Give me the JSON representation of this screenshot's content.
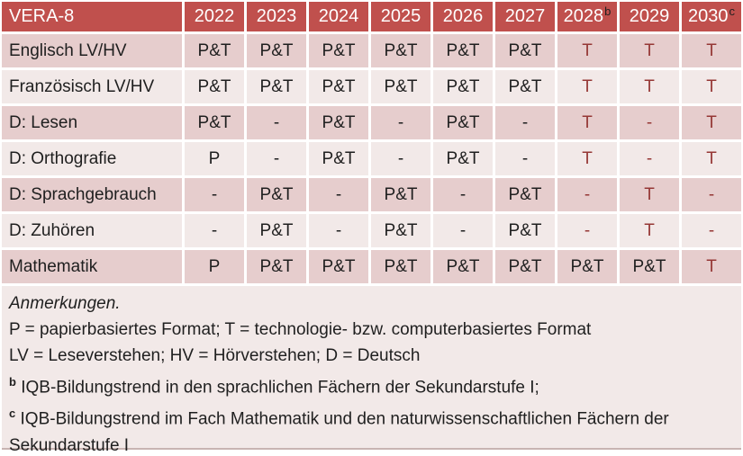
{
  "table": {
    "title": "VERA-8",
    "columns": [
      {
        "year": "2022",
        "sup": ""
      },
      {
        "year": "2023",
        "sup": ""
      },
      {
        "year": "2024",
        "sup": ""
      },
      {
        "year": "2025",
        "sup": ""
      },
      {
        "year": "2026",
        "sup": ""
      },
      {
        "year": "2027",
        "sup": ""
      },
      {
        "year": "2028",
        "sup": "b"
      },
      {
        "year": "2029",
        "sup": ""
      },
      {
        "year": "2030",
        "sup": "c"
      }
    ],
    "rows": [
      {
        "label": "Englisch LV/HV",
        "cells": [
          {
            "t": "P&T",
            "red": false
          },
          {
            "t": "P&T",
            "red": false
          },
          {
            "t": "P&T",
            "red": false
          },
          {
            "t": "P&T",
            "red": false
          },
          {
            "t": "P&T",
            "red": false
          },
          {
            "t": "P&T",
            "red": false
          },
          {
            "t": "T",
            "red": true
          },
          {
            "t": "T",
            "red": true
          },
          {
            "t": "T",
            "red": true
          }
        ]
      },
      {
        "label": "Französisch LV/HV",
        "cells": [
          {
            "t": "P&T",
            "red": false
          },
          {
            "t": "P&T",
            "red": false
          },
          {
            "t": "P&T",
            "red": false
          },
          {
            "t": "P&T",
            "red": false
          },
          {
            "t": "P&T",
            "red": false
          },
          {
            "t": "P&T",
            "red": false
          },
          {
            "t": "T",
            "red": true
          },
          {
            "t": "T",
            "red": true
          },
          {
            "t": "T",
            "red": true
          }
        ]
      },
      {
        "label": "D: Lesen",
        "cells": [
          {
            "t": "P&T",
            "red": false
          },
          {
            "t": "-",
            "red": false
          },
          {
            "t": "P&T",
            "red": false
          },
          {
            "t": "-",
            "red": false
          },
          {
            "t": "P&T",
            "red": false
          },
          {
            "t": "-",
            "red": false
          },
          {
            "t": "T",
            "red": true
          },
          {
            "t": "-",
            "red": true
          },
          {
            "t": "T",
            "red": true
          }
        ]
      },
      {
        "label": "D: Orthografie",
        "cells": [
          {
            "t": "P",
            "red": false
          },
          {
            "t": "-",
            "red": false
          },
          {
            "t": "P&T",
            "red": false
          },
          {
            "t": "-",
            "red": false
          },
          {
            "t": "P&T",
            "red": false
          },
          {
            "t": "-",
            "red": false
          },
          {
            "t": "T",
            "red": true
          },
          {
            "t": "-",
            "red": true
          },
          {
            "t": "T",
            "red": true
          }
        ]
      },
      {
        "label": "D: Sprachgebrauch",
        "cells": [
          {
            "t": "-",
            "red": false
          },
          {
            "t": "P&T",
            "red": false
          },
          {
            "t": "-",
            "red": false
          },
          {
            "t": "P&T",
            "red": false
          },
          {
            "t": "-",
            "red": false
          },
          {
            "t": "P&T",
            "red": false
          },
          {
            "t": "-",
            "red": true
          },
          {
            "t": "T",
            "red": true
          },
          {
            "t": "-",
            "red": true
          }
        ]
      },
      {
        "label": "D: Zuhören",
        "cells": [
          {
            "t": "-",
            "red": false
          },
          {
            "t": "P&T",
            "red": false
          },
          {
            "t": "-",
            "red": false
          },
          {
            "t": "P&T",
            "red": false
          },
          {
            "t": "-",
            "red": false
          },
          {
            "t": "P&T",
            "red": false
          },
          {
            "t": "-",
            "red": true
          },
          {
            "t": "T",
            "red": true
          },
          {
            "t": "-",
            "red": true
          }
        ]
      },
      {
        "label": "Mathematik",
        "cells": [
          {
            "t": "P",
            "red": false
          },
          {
            "t": "P&T",
            "red": false
          },
          {
            "t": "P&T",
            "red": false
          },
          {
            "t": "P&T",
            "red": false
          },
          {
            "t": "P&T",
            "red": false
          },
          {
            "t": "P&T",
            "red": false
          },
          {
            "t": "P&T",
            "red": false
          },
          {
            "t": "P&T",
            "red": false
          },
          {
            "t": "T",
            "red": true
          }
        ]
      }
    ]
  },
  "notes": {
    "heading": "Anmerkungen.",
    "lines": [
      {
        "sup": "",
        "text": "P = papierbasiertes Format; T = technologie- bzw. computerbasiertes Format"
      },
      {
        "sup": "",
        "text": "LV = Leseverstehen; HV = Hörverstehen; D = Deutsch"
      },
      {
        "sup": "b",
        "text": "IQB-Bildungstrend in den sprachlichen Fächern der Sekundarstufe I;"
      },
      {
        "sup": "c",
        "text": "IQB-Bildungstrend im Fach Mathematik und den naturwissenschaftlichen Fächern der Sekundarstufe I"
      }
    ]
  },
  "colors": {
    "header_bg": "#c0504d",
    "header_text": "#ffffff",
    "row_dark_bg": "#e6cdcd",
    "row_light_bg": "#f2e9e8",
    "notes_bg": "#f2e9e8",
    "tech_red": "#953735",
    "body_text": "#1f1f1f"
  }
}
